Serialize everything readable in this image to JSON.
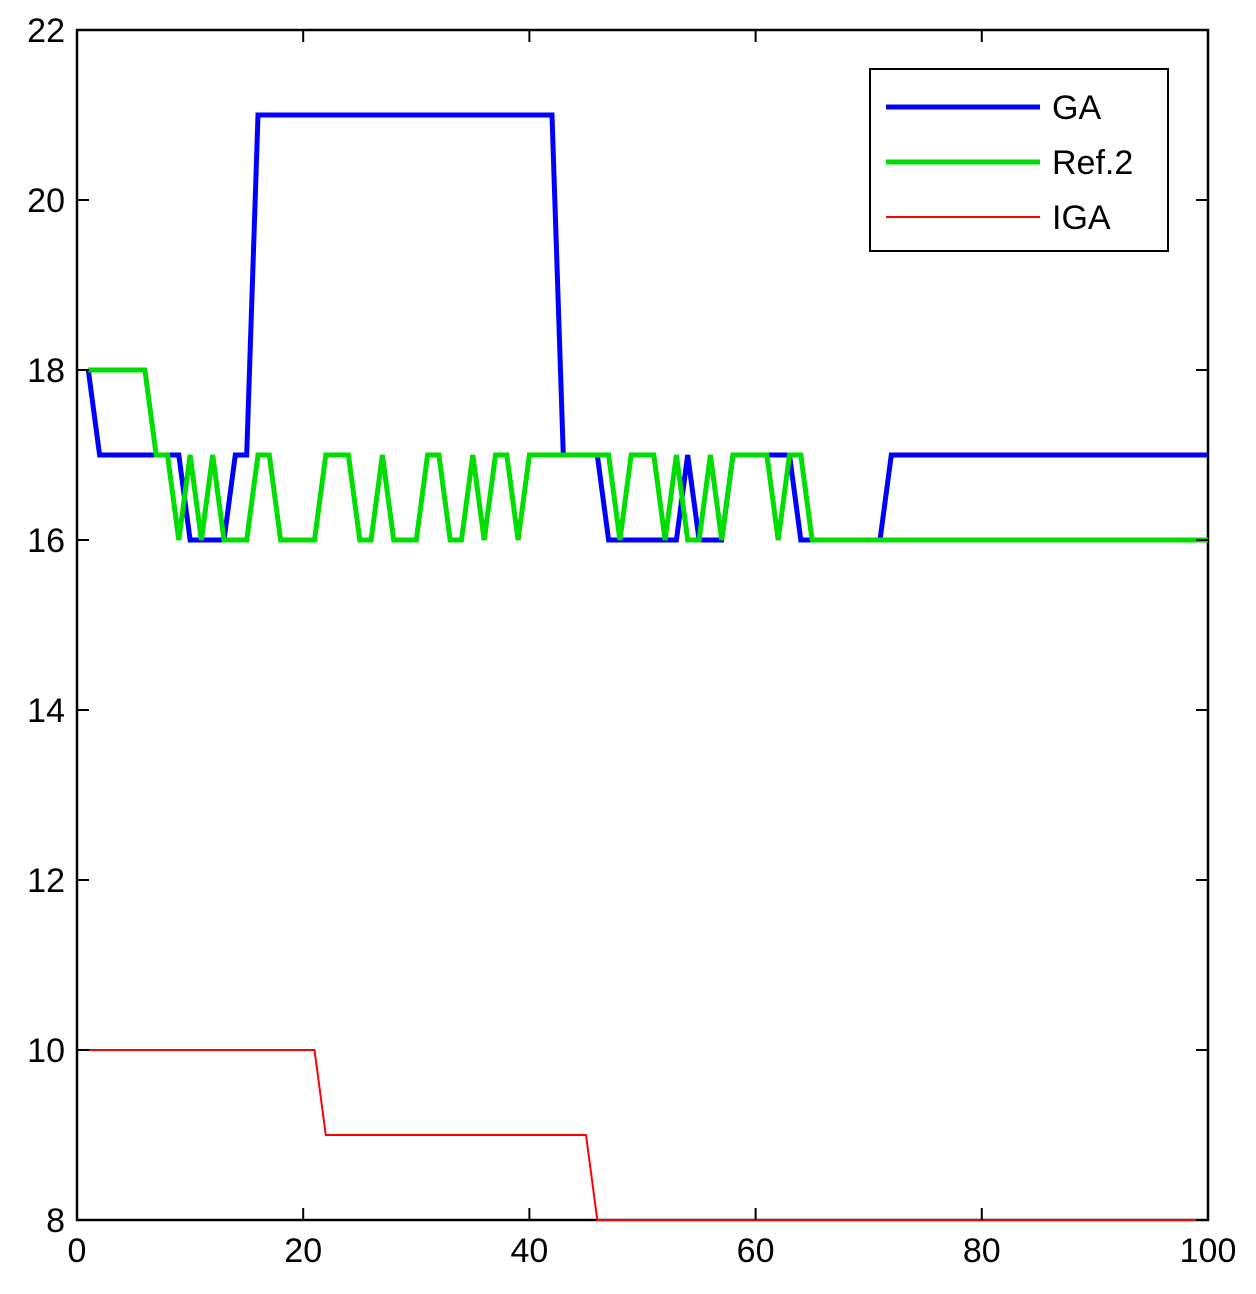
{
  "chart_data": {
    "type": "line",
    "title": "",
    "xlabel": "",
    "ylabel": "",
    "xlim": [
      0,
      100
    ],
    "ylim": [
      8,
      22
    ],
    "xticks": [
      0,
      20,
      40,
      60,
      80,
      100
    ],
    "yticks": [
      8,
      10,
      12,
      14,
      16,
      18,
      20,
      22
    ],
    "grid": false,
    "legend_position": "top-right",
    "series": [
      {
        "name": "GA",
        "color": "#0000ff",
        "line_width": "thick",
        "points": [
          [
            1,
            18
          ],
          [
            2,
            17
          ],
          [
            9,
            17
          ],
          [
            10,
            16
          ],
          [
            13,
            16
          ],
          [
            14,
            17
          ],
          [
            15,
            17
          ],
          [
            16,
            21
          ],
          [
            42,
            21
          ],
          [
            43,
            17
          ],
          [
            46,
            17
          ],
          [
            47,
            16
          ],
          [
            53,
            16
          ],
          [
            54,
            17
          ],
          [
            55,
            16
          ],
          [
            57,
            16
          ],
          [
            58,
            17
          ],
          [
            63,
            17
          ],
          [
            64,
            16
          ],
          [
            71,
            16
          ],
          [
            72,
            17
          ],
          [
            100,
            17
          ]
        ]
      },
      {
        "name": "Ref.2",
        "color": "#00dd00",
        "line_width": "thick",
        "points": [
          [
            1,
            18
          ],
          [
            6,
            18
          ],
          [
            7,
            17
          ],
          [
            8,
            17
          ],
          [
            9,
            16
          ],
          [
            10,
            17
          ],
          [
            11,
            16
          ],
          [
            12,
            17
          ],
          [
            13,
            16
          ],
          [
            15,
            16
          ],
          [
            16,
            17
          ],
          [
            17,
            17
          ],
          [
            18,
            16
          ],
          [
            21,
            16
          ],
          [
            22,
            17
          ],
          [
            24,
            17
          ],
          [
            25,
            16
          ],
          [
            26,
            16
          ],
          [
            27,
            17
          ],
          [
            28,
            16
          ],
          [
            30,
            16
          ],
          [
            31,
            17
          ],
          [
            32,
            17
          ],
          [
            33,
            16
          ],
          [
            34,
            16
          ],
          [
            35,
            17
          ],
          [
            36,
            16
          ],
          [
            37,
            17
          ],
          [
            38,
            17
          ],
          [
            39,
            16
          ],
          [
            40,
            17
          ],
          [
            47,
            17
          ],
          [
            48,
            16
          ],
          [
            49,
            17
          ],
          [
            51,
            17
          ],
          [
            52,
            16
          ],
          [
            53,
            17
          ],
          [
            54,
            16
          ],
          [
            55,
            16
          ],
          [
            56,
            17
          ],
          [
            57,
            16
          ],
          [
            58,
            17
          ],
          [
            61,
            17
          ],
          [
            62,
            16
          ],
          [
            63,
            17
          ],
          [
            64,
            17
          ],
          [
            65,
            16
          ],
          [
            100,
            16
          ]
        ]
      },
      {
        "name": "IGA",
        "color": "#ff0000",
        "line_width": "thin",
        "points": [
          [
            0,
            10
          ],
          [
            21,
            10
          ],
          [
            22,
            9
          ],
          [
            45,
            9
          ],
          [
            46,
            8
          ],
          [
            100,
            8
          ]
        ]
      }
    ]
  }
}
